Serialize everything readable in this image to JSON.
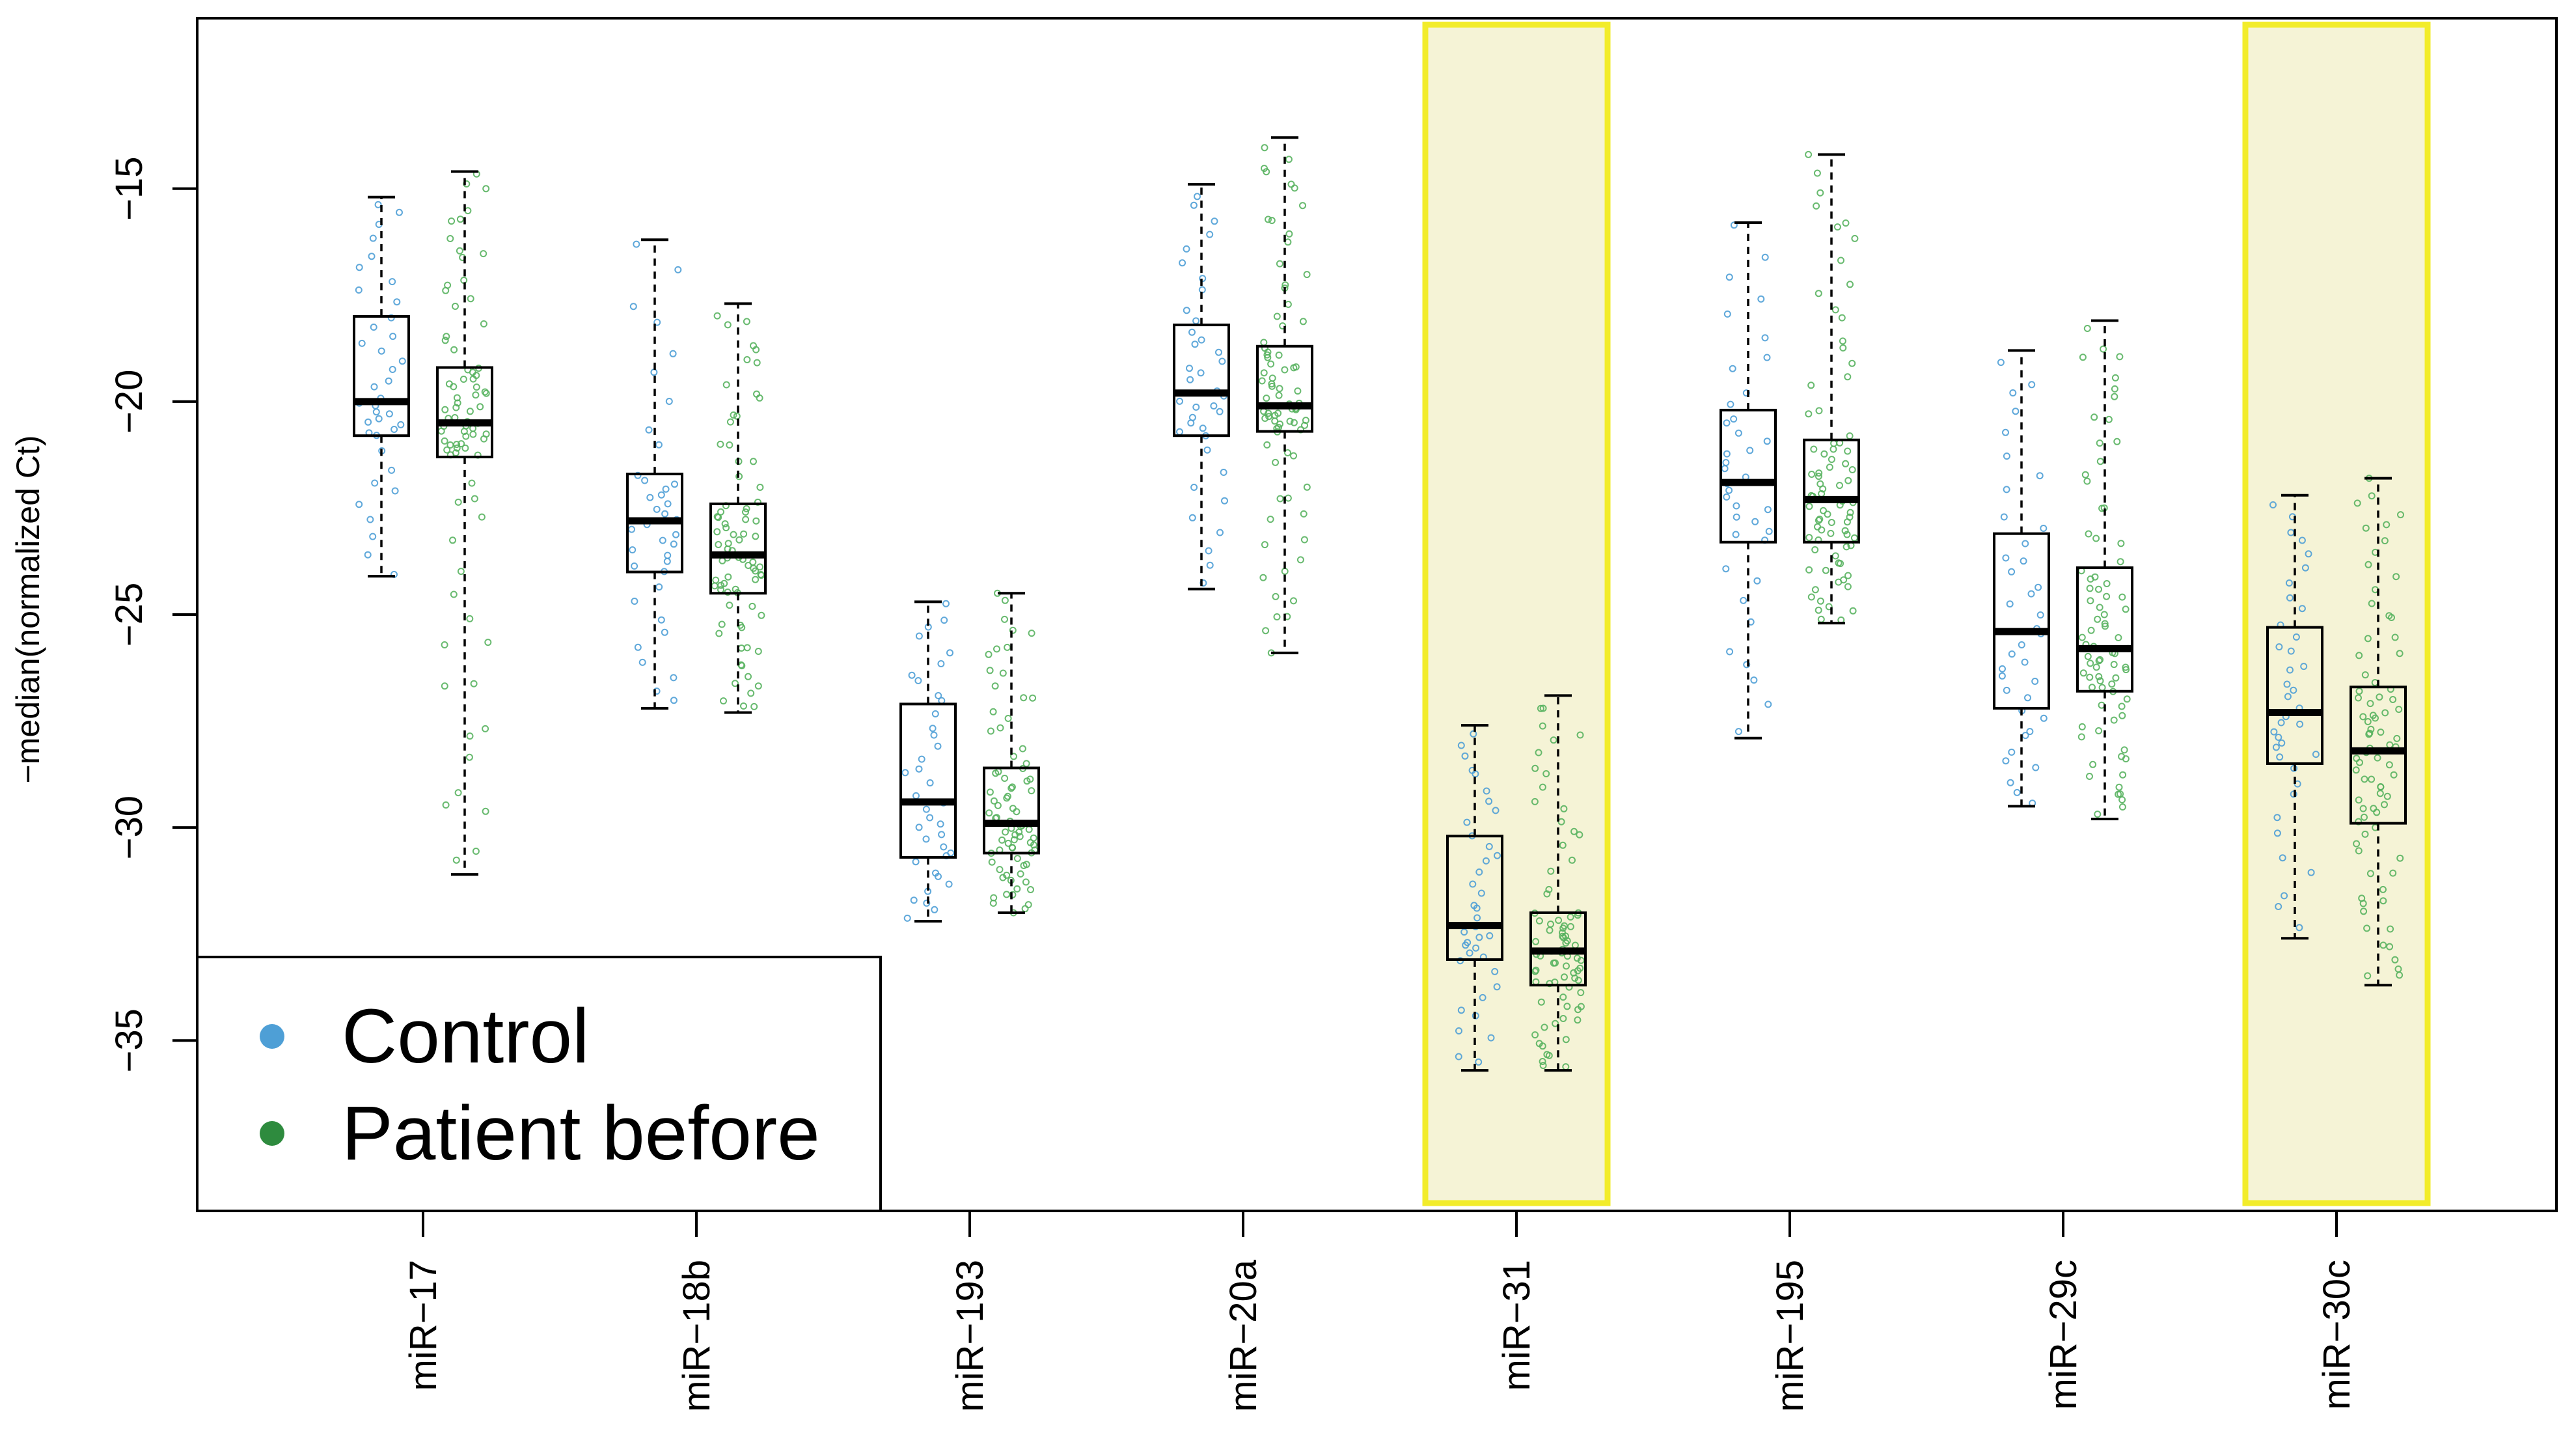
{
  "chart_data": {
    "type": "boxplot",
    "title": "",
    "xlabel": "",
    "ylabel": "−median(normalized Ct)",
    "ylim": [
      -39.0,
      -11.0
    ],
    "yticks": [
      -15,
      -20,
      -25,
      -30,
      -35
    ],
    "ytick_labels": [
      "−15",
      "−20",
      "−25",
      "−30",
      "−35"
    ],
    "categories": [
      "miR−17",
      "miR−18b",
      "miR−193",
      "miR−20a",
      "miR−31",
      "miR−195",
      "miR−29c",
      "miR−30c"
    ],
    "highlighted_categories": [
      "miR−31",
      "miR−30c"
    ],
    "highlight_colors": {
      "fill": "#f5f3d6",
      "border": "#f2ec2a"
    },
    "series": [
      {
        "name": "Control",
        "color": "#4e9fd6",
        "point_counts": [
          38,
          38,
          38,
          38,
          38,
          38,
          38,
          38
        ],
        "boxes": [
          {
            "whisker_low": -24.1,
            "q1": -20.8,
            "median": -20.0,
            "q3": -18.0,
            "whisker_high": -15.2
          },
          {
            "whisker_low": -27.2,
            "q1": -24.0,
            "median": -22.8,
            "q3": -21.7,
            "whisker_high": -16.2
          },
          {
            "whisker_low": -32.2,
            "q1": -30.7,
            "median": -29.4,
            "q3": -27.1,
            "whisker_high": -24.7
          },
          {
            "whisker_low": -24.4,
            "q1": -20.8,
            "median": -19.8,
            "q3": -18.2,
            "whisker_high": -14.9
          },
          {
            "whisker_low": -35.7,
            "q1": -33.1,
            "median": -32.3,
            "q3": -30.2,
            "whisker_high": -27.6
          },
          {
            "whisker_low": -27.9,
            "q1": -23.3,
            "median": -21.9,
            "q3": -20.2,
            "whisker_high": -15.8
          },
          {
            "whisker_low": -29.5,
            "q1": -27.2,
            "median": -25.4,
            "q3": -23.1,
            "whisker_high": -18.8
          },
          {
            "whisker_low": -32.6,
            "q1": -28.5,
            "median": -27.3,
            "q3": -25.3,
            "whisker_high": -22.2
          }
        ]
      },
      {
        "name": "Patient before",
        "color": "#58b35f",
        "point_counts": [
          80,
          80,
          80,
          80,
          80,
          80,
          80,
          80
        ],
        "boxes": [
          {
            "whisker_low": -31.1,
            "q1": -21.3,
            "median": -20.5,
            "q3": -19.2,
            "whisker_high": -14.6
          },
          {
            "whisker_low": -27.3,
            "q1": -24.5,
            "median": -23.6,
            "q3": -22.4,
            "whisker_high": -17.7
          },
          {
            "whisker_low": -32.0,
            "q1": -30.6,
            "median": -29.9,
            "q3": -28.6,
            "whisker_high": -24.5
          },
          {
            "whisker_low": -25.9,
            "q1": -20.7,
            "median": -20.1,
            "q3": -18.7,
            "whisker_high": -13.8
          },
          {
            "whisker_low": -35.7,
            "q1": -33.7,
            "median": -32.9,
            "q3": -32.0,
            "whisker_high": -26.9
          },
          {
            "whisker_low": -25.2,
            "q1": -23.3,
            "median": -22.3,
            "q3": -20.9,
            "whisker_high": -14.2
          },
          {
            "whisker_low": -29.8,
            "q1": -26.8,
            "median": -25.8,
            "q3": -23.9,
            "whisker_high": -18.1
          },
          {
            "whisker_low": -33.7,
            "q1": -29.9,
            "median": -28.2,
            "q3": -26.7,
            "whisker_high": -21.8
          }
        ]
      }
    ],
    "legend": {
      "position": "bottom-left",
      "entries": [
        {
          "label": "Control",
          "color": "#4e9fd6"
        },
        {
          "label": "Patient before",
          "color": "#2e8b3e"
        }
      ]
    }
  }
}
